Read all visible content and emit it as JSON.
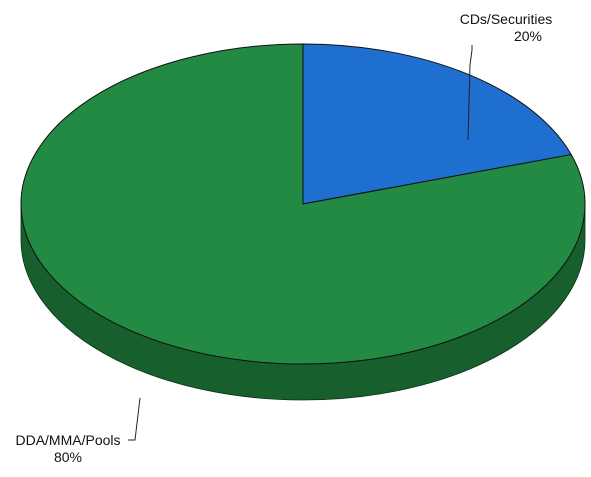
{
  "chart_data": {
    "type": "pie",
    "style": "3d",
    "slices": [
      {
        "label": "CDs/Securities",
        "value": 20,
        "value_label": "20%",
        "color": "#1f6fd1",
        "side_color": "#154e96"
      },
      {
        "label": "DDA/MMA/Pools",
        "value": 80,
        "value_label": "80%",
        "color": "#238a44",
        "side_color": "#17602e"
      }
    ],
    "legend": "none"
  }
}
